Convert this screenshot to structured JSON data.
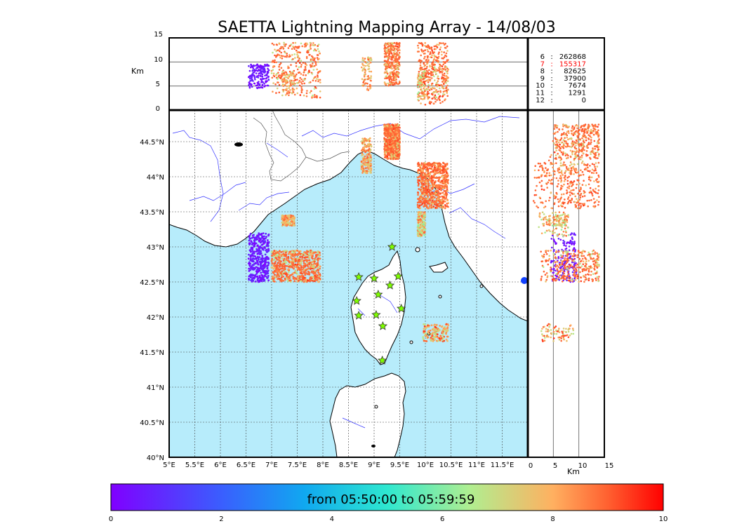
{
  "title": "SAETTA Lightning Mapping Array - 14/08/03",
  "time_range_label": "from 05:50:00 to 05:59:59",
  "altitude_unit_label": "Km",
  "station_counts": [
    {
      "stations": "6",
      "count": "262868",
      "color": "#000000"
    },
    {
      "stations": "7",
      "count": "155317",
      "color": "#ff0000"
    },
    {
      "stations": "8",
      "count": "82625",
      "color": "#000000"
    },
    {
      "stations": "9",
      "count": "37900",
      "color": "#000000"
    },
    {
      "stations": "10",
      "count": "7674",
      "color": "#000000"
    },
    {
      "stations": "11",
      "count": "1291",
      "color": "#000000"
    },
    {
      "stations": "12",
      "count": "0",
      "color": "#000000"
    }
  ],
  "colors": {
    "sea": "#b7ecfb",
    "land": "#ffffff",
    "rivers": "#3333ff",
    "stations": "#7fff00",
    "dense_sources": "#ff4422"
  },
  "colormap": "rainbow",
  "chart_data": {
    "type": "scatter",
    "description_free": true,
    "map": {
      "lon_range": [
        5.0,
        12.0
      ],
      "lat_range": [
        40.0,
        44.95
      ],
      "lon_ticks": [
        "5°E",
        "5.5°E",
        "6°E",
        "6.5°E",
        "7°E",
        "7.5°E",
        "8°E",
        "8.5°E",
        "9°E",
        "9.5°E",
        "10°E",
        "10.5°E",
        "11°E",
        "11.5°E"
      ],
      "lat_ticks": [
        "40°N",
        "40.5°N",
        "41°N",
        "41.5°N",
        "42°N",
        "42.5°N",
        "43°N",
        "43.5°N",
        "44°N",
        "44.5°N"
      ],
      "grid": true
    },
    "altitude_axis": {
      "range": [
        0,
        15
      ],
      "ticks": [
        "0",
        "5",
        "10",
        "15"
      ],
      "label": "Km"
    },
    "colorbar": {
      "range": [
        0,
        10
      ],
      "ticks": [
        "0",
        "2",
        "4",
        "6",
        "8",
        "10"
      ]
    },
    "stations": [
      {
        "lon": 9.35,
        "lat": 43.0
      },
      {
        "lon": 8.7,
        "lat": 42.57
      },
      {
        "lon": 9.0,
        "lat": 42.55
      },
      {
        "lon": 9.47,
        "lat": 42.58
      },
      {
        "lon": 9.31,
        "lat": 42.45
      },
      {
        "lon": 9.08,
        "lat": 42.32
      },
      {
        "lon": 8.66,
        "lat": 42.23
      },
      {
        "lon": 9.53,
        "lat": 42.12
      },
      {
        "lon": 8.7,
        "lat": 42.02
      },
      {
        "lon": 9.04,
        "lat": 42.03
      },
      {
        "lon": 9.17,
        "lat": 41.87
      },
      {
        "lon": 9.16,
        "lat": 41.38
      }
    ],
    "clusters": [
      {
        "lon": [
          6.55,
          6.95
        ],
        "lat": [
          42.5,
          43.2
        ],
        "alt": [
          4.5,
          9.5
        ],
        "time": [
          0.0,
          1.0
        ],
        "kind": "early"
      },
      {
        "lon": [
          7.0,
          7.95
        ],
        "lat": [
          42.5,
          42.95
        ],
        "alt": [
          2.5,
          14.0
        ],
        "time": [
          6.5,
          9.5
        ],
        "kind": "main"
      },
      {
        "lon": [
          7.2,
          7.45
        ],
        "lat": [
          43.3,
          43.45
        ],
        "alt": [
          3.0,
          8.0
        ],
        "time": [
          7.0,
          9.0
        ],
        "kind": "small"
      },
      {
        "lon": [
          8.75,
          8.95
        ],
        "lat": [
          44.05,
          44.55
        ],
        "alt": [
          4.0,
          11.0
        ],
        "time": [
          7.0,
          9.0
        ],
        "kind": "small"
      },
      {
        "lon": [
          9.2,
          9.5
        ],
        "lat": [
          44.25,
          44.75
        ],
        "alt": [
          5.0,
          14.0
        ],
        "time": [
          7.0,
          9.5
        ],
        "kind": "main"
      },
      {
        "lon": [
          9.85,
          10.45
        ],
        "lat": [
          43.55,
          44.2
        ],
        "alt": [
          1.0,
          14.0
        ],
        "time": [
          7.5,
          9.5
        ],
        "kind": "main"
      },
      {
        "lon": [
          9.85,
          10.0
        ],
        "lat": [
          43.15,
          43.5
        ],
        "alt": [
          2.0,
          8.0
        ],
        "time": [
          6.0,
          9.0
        ],
        "kind": "small"
      },
      {
        "lon": [
          9.95,
          10.45
        ],
        "lat": [
          41.65,
          41.9
        ],
        "alt": [
          2.0,
          9.0
        ],
        "time": [
          6.5,
          9.5
        ],
        "kind": "small"
      }
    ]
  }
}
